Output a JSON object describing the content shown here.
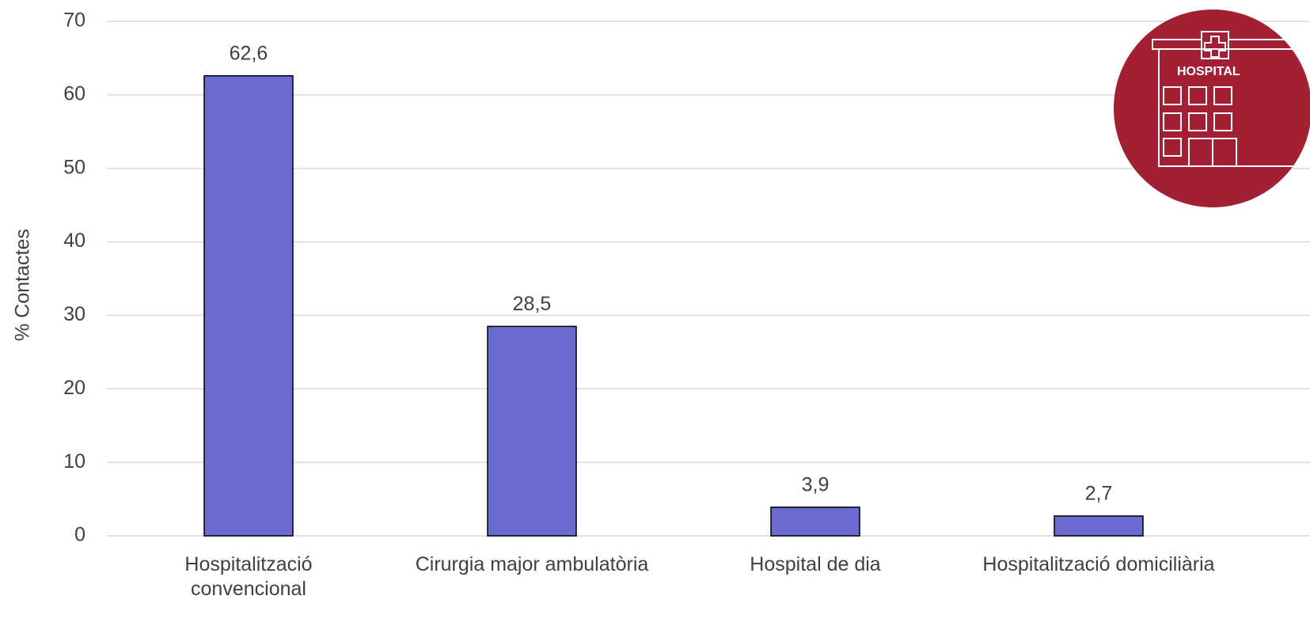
{
  "chart_data": {
    "type": "bar",
    "y_label": "% Contactes",
    "categories": [
      "Hospitalització\nconvencional",
      "Cirurgia major ambulatòria",
      "Hospital de dia",
      "Hospitalització domiciliària"
    ],
    "values": [
      62.6,
      28.5,
      3.9,
      2.7
    ],
    "value_labels": [
      "62,6",
      "28,5",
      "3,9",
      "2,7"
    ],
    "color": "#6b6bcf",
    "ylim": [
      0,
      70
    ],
    "yticks": [
      0,
      10,
      20,
      30,
      40,
      50,
      60,
      70
    ],
    "grid": true,
    "icon_label": "HOSPITAL"
  }
}
